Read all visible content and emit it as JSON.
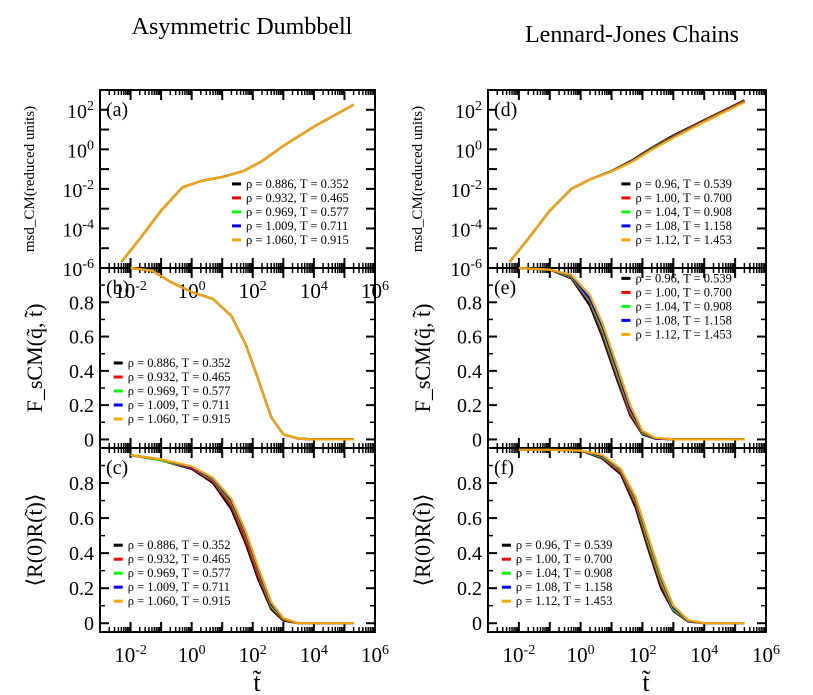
{
  "columns": [
    {
      "title": "Asymmetric Dumbbell"
    },
    {
      "title": "Lennard-Jones Chains"
    }
  ],
  "xlabel": "t̃",
  "colors": [
    "#000000",
    "#ff0000",
    "#00ff00",
    "#0000ff",
    "#ffa500"
  ],
  "chart_data": [
    {
      "panel": "(a)",
      "type": "line",
      "xscale": "log",
      "yscale": "log",
      "xlim": [
        0.001,
        1000000
      ],
      "ylim": [
        1e-06,
        1000
      ],
      "xticks": [
        "10^-2",
        "10^0",
        "10^2",
        "10^4",
        "10^6"
      ],
      "yticks": [
        "10^-6",
        "10^-4",
        "10^-2",
        "10^0",
        "10^2"
      ],
      "ylabel": "msd_CM(reduced units)",
      "legend": "lower-right",
      "series": [
        {
          "name": "ρ = 0.886, T = 0.352",
          "x": [
            0.005,
            0.02,
            0.1,
            0.5,
            2,
            10,
            50,
            200,
            1000,
            10000,
            200000
          ],
          "y": [
            2e-06,
            3e-05,
            0.0008,
            0.012,
            0.025,
            0.04,
            0.08,
            0.25,
            1.5,
            14,
            180
          ]
        },
        {
          "name": "ρ = 0.932, T = 0.465",
          "x": [
            0.005,
            0.02,
            0.1,
            0.5,
            2,
            10,
            50,
            200,
            1000,
            10000,
            200000
          ],
          "y": [
            2e-06,
            3e-05,
            0.0008,
            0.012,
            0.025,
            0.04,
            0.08,
            0.25,
            1.5,
            14,
            180
          ]
        },
        {
          "name": "ρ = 0.969, T = 0.577",
          "x": [
            0.005,
            0.02,
            0.1,
            0.5,
            2,
            10,
            50,
            200,
            1000,
            10000,
            200000
          ],
          "y": [
            2e-06,
            3e-05,
            0.0008,
            0.012,
            0.025,
            0.04,
            0.08,
            0.25,
            1.5,
            14,
            180
          ]
        },
        {
          "name": "ρ = 1.009, T = 0.711",
          "x": [
            0.005,
            0.02,
            0.1,
            0.5,
            2,
            10,
            50,
            200,
            1000,
            10000,
            200000
          ],
          "y": [
            2e-06,
            3e-05,
            0.0008,
            0.012,
            0.025,
            0.04,
            0.08,
            0.25,
            1.5,
            14,
            180
          ]
        },
        {
          "name": "ρ = 1.060, T = 0.915",
          "x": [
            0.005,
            0.02,
            0.1,
            0.5,
            2,
            10,
            50,
            200,
            1000,
            10000,
            200000
          ],
          "y": [
            2e-06,
            3e-05,
            0.0008,
            0.012,
            0.025,
            0.04,
            0.08,
            0.25,
            1.5,
            14,
            180
          ]
        }
      ]
    },
    {
      "panel": "(b)",
      "type": "line",
      "xscale": "log",
      "xlim": [
        0.001,
        1000000
      ],
      "ylim": [
        -0.05,
        1.0
      ],
      "yticks": [
        "0",
        "0.2",
        "0.4",
        "0.6",
        "0.8"
      ],
      "ylabel": "F_sCM(q̃, t̃)",
      "legend": "lower-left",
      "series": [
        {
          "name": "ρ = 0.886, T = 0.352",
          "x": [
            0.01,
            0.05,
            0.2,
            1,
            5,
            20,
            60,
            150,
            400,
            1000,
            3000,
            10000,
            200000
          ],
          "y": [
            1.0,
            0.985,
            0.92,
            0.86,
            0.82,
            0.72,
            0.55,
            0.35,
            0.13,
            0.03,
            0.005,
            0.0,
            0.0
          ]
        },
        {
          "name": "ρ = 0.932, T = 0.465",
          "x": [
            0.01,
            0.05,
            0.2,
            1,
            5,
            20,
            60,
            150,
            400,
            1000,
            3000,
            10000,
            200000
          ],
          "y": [
            1.0,
            0.985,
            0.92,
            0.86,
            0.82,
            0.72,
            0.55,
            0.35,
            0.13,
            0.03,
            0.005,
            0.0,
            0.0
          ]
        },
        {
          "name": "ρ = 0.969, T = 0.577",
          "x": [
            0.01,
            0.05,
            0.2,
            1,
            5,
            20,
            60,
            150,
            400,
            1000,
            3000,
            10000,
            200000
          ],
          "y": [
            1.0,
            0.985,
            0.92,
            0.86,
            0.82,
            0.72,
            0.55,
            0.35,
            0.13,
            0.03,
            0.005,
            0.0,
            0.0
          ]
        },
        {
          "name": "ρ = 1.009, T = 0.711",
          "x": [
            0.01,
            0.05,
            0.2,
            1,
            5,
            20,
            60,
            150,
            400,
            1000,
            3000,
            10000,
            200000
          ],
          "y": [
            1.0,
            0.985,
            0.92,
            0.86,
            0.82,
            0.72,
            0.55,
            0.35,
            0.13,
            0.03,
            0.005,
            0.0,
            0.0
          ]
        },
        {
          "name": "ρ = 1.060, T = 0.915",
          "x": [
            0.01,
            0.05,
            0.2,
            1,
            5,
            20,
            60,
            150,
            400,
            1000,
            3000,
            10000,
            200000
          ],
          "y": [
            1.0,
            0.985,
            0.92,
            0.86,
            0.82,
            0.72,
            0.55,
            0.35,
            0.13,
            0.03,
            0.005,
            0.0,
            0.0
          ]
        }
      ]
    },
    {
      "panel": "(c)",
      "type": "line",
      "xscale": "log",
      "xlim": [
        0.001,
        1000000
      ],
      "ylim": [
        -0.05,
        1.0
      ],
      "xticks": [
        "10^-2",
        "10^0",
        "10^2",
        "10^4",
        "10^6"
      ],
      "yticks": [
        "0",
        "0.2",
        "0.4",
        "0.6",
        "0.8"
      ],
      "ylabel": "⟨R(0)R(t̃)⟩",
      "legend": "lower-left",
      "series": [
        {
          "name": "ρ = 0.886, T = 0.352",
          "x": [
            0.01,
            0.1,
            1,
            5,
            20,
            60,
            150,
            400,
            1000,
            3000,
            10000,
            200000
          ],
          "y": [
            0.96,
            0.93,
            0.88,
            0.8,
            0.65,
            0.45,
            0.25,
            0.08,
            0.015,
            0.0,
            0.0,
            0.0
          ]
        },
        {
          "name": "ρ = 0.932, T = 0.465",
          "x": [
            0.01,
            0.1,
            1,
            5,
            20,
            60,
            150,
            400,
            1000,
            3000,
            10000,
            200000
          ],
          "y": [
            0.96,
            0.93,
            0.885,
            0.81,
            0.67,
            0.47,
            0.27,
            0.09,
            0.02,
            0.0,
            0.0,
            0.0
          ]
        },
        {
          "name": "ρ = 0.969, T = 0.577",
          "x": [
            0.01,
            0.1,
            1,
            5,
            20,
            60,
            150,
            400,
            1000,
            3000,
            10000,
            200000
          ],
          "y": [
            0.96,
            0.93,
            0.89,
            0.82,
            0.69,
            0.5,
            0.3,
            0.1,
            0.025,
            0.0,
            0.0,
            0.0
          ]
        },
        {
          "name": "ρ = 1.009, T = 0.711",
          "x": [
            0.01,
            0.1,
            1,
            5,
            20,
            60,
            150,
            400,
            1000,
            3000,
            10000,
            200000
          ],
          "y": [
            0.96,
            0.935,
            0.89,
            0.825,
            0.7,
            0.51,
            0.31,
            0.11,
            0.028,
            0.0,
            0.0,
            0.0
          ]
        },
        {
          "name": "ρ = 1.060, T = 0.915",
          "x": [
            0.01,
            0.1,
            1,
            5,
            20,
            60,
            150,
            400,
            1000,
            3000,
            10000,
            200000
          ],
          "y": [
            0.96,
            0.935,
            0.895,
            0.83,
            0.71,
            0.52,
            0.32,
            0.12,
            0.03,
            0.0,
            0.0,
            0.0
          ]
        }
      ]
    },
    {
      "panel": "(d)",
      "type": "line",
      "xscale": "log",
      "yscale": "log",
      "xlim": [
        0.001,
        1000000
      ],
      "ylim": [
        1e-06,
        1000
      ],
      "yticks": [
        "10^-6",
        "10^-4",
        "10^-2",
        "10^0",
        "10^2"
      ],
      "ylabel": "msd_CM(reduced units)",
      "legend": "lower-right",
      "series": [
        {
          "name": "ρ = 0.96, T = 0.539",
          "x": [
            0.005,
            0.02,
            0.1,
            0.5,
            2,
            10,
            50,
            200,
            1000,
            10000,
            200000
          ],
          "y": [
            2e-06,
            3e-05,
            0.0008,
            0.01,
            0.03,
            0.08,
            0.3,
            1.2,
            5,
            30,
            300
          ]
        },
        {
          "name": "ρ = 1.00, T = 0.700",
          "x": [
            0.005,
            0.02,
            0.1,
            0.5,
            2,
            10,
            50,
            200,
            1000,
            10000,
            200000
          ],
          "y": [
            2e-06,
            3e-05,
            0.0008,
            0.01,
            0.03,
            0.08,
            0.28,
            1.1,
            4.5,
            28,
            280
          ]
        },
        {
          "name": "ρ = 1.04, T = 0.908",
          "x": [
            0.005,
            0.02,
            0.1,
            0.5,
            2,
            10,
            50,
            200,
            1000,
            10000,
            200000
          ],
          "y": [
            2e-06,
            3e-05,
            0.0008,
            0.01,
            0.03,
            0.078,
            0.27,
            1.05,
            4.2,
            26,
            260
          ]
        },
        {
          "name": "ρ = 1.08, T = 1.158",
          "x": [
            0.005,
            0.02,
            0.1,
            0.5,
            2,
            10,
            50,
            200,
            1000,
            10000,
            200000
          ],
          "y": [
            2e-06,
            3e-05,
            0.0008,
            0.01,
            0.03,
            0.076,
            0.26,
            1.0,
            4,
            25,
            250
          ]
        },
        {
          "name": "ρ = 1.12, T = 1.453",
          "x": [
            0.005,
            0.02,
            0.1,
            0.5,
            2,
            10,
            50,
            200,
            1000,
            10000,
            200000
          ],
          "y": [
            2e-06,
            3e-05,
            0.0008,
            0.01,
            0.03,
            0.075,
            0.25,
            0.95,
            3.8,
            24,
            240
          ]
        }
      ]
    },
    {
      "panel": "(e)",
      "type": "line",
      "xscale": "log",
      "xlim": [
        0.001,
        1000000
      ],
      "ylim": [
        -0.05,
        1.0
      ],
      "yticks": [
        "0",
        "0.2",
        "0.4",
        "0.6",
        "0.8"
      ],
      "ylabel": "F_sCM(q̃, t̃)",
      "legend": "top-right",
      "series": [
        {
          "name": "ρ = 0.96, T = 0.539",
          "x": [
            0.01,
            0.1,
            0.5,
            2,
            5,
            15,
            40,
            100,
            250,
            1000,
            10000,
            200000
          ],
          "y": [
            1.0,
            0.99,
            0.94,
            0.78,
            0.6,
            0.35,
            0.14,
            0.03,
            0.005,
            0.0,
            0.0,
            0.0
          ]
        },
        {
          "name": "ρ = 1.00, T = 0.700",
          "x": [
            0.01,
            0.1,
            0.5,
            2,
            5,
            15,
            40,
            100,
            250,
            1000,
            10000,
            200000
          ],
          "y": [
            1.0,
            0.99,
            0.945,
            0.8,
            0.62,
            0.37,
            0.15,
            0.035,
            0.006,
            0.0,
            0.0,
            0.0
          ]
        },
        {
          "name": "ρ = 1.04, T = 0.908",
          "x": [
            0.01,
            0.1,
            0.5,
            2,
            5,
            15,
            40,
            100,
            250,
            1000,
            10000,
            200000
          ],
          "y": [
            1.0,
            0.99,
            0.95,
            0.81,
            0.64,
            0.39,
            0.17,
            0.04,
            0.007,
            0.0,
            0.0,
            0.0
          ]
        },
        {
          "name": "ρ = 1.08, T = 1.158",
          "x": [
            0.01,
            0.1,
            0.5,
            2,
            5,
            15,
            40,
            100,
            250,
            1000,
            10000,
            200000
          ],
          "y": [
            1.0,
            0.99,
            0.955,
            0.82,
            0.66,
            0.41,
            0.18,
            0.045,
            0.008,
            0.0,
            0.0,
            0.0
          ]
        },
        {
          "name": "ρ = 1.12, T = 1.453",
          "x": [
            0.01,
            0.1,
            0.5,
            2,
            5,
            15,
            40,
            100,
            250,
            1000,
            10000,
            200000
          ],
          "y": [
            1.0,
            0.99,
            0.96,
            0.84,
            0.68,
            0.43,
            0.2,
            0.05,
            0.01,
            0.0,
            0.0,
            0.0
          ]
        }
      ]
    },
    {
      "panel": "(f)",
      "type": "line",
      "xscale": "log",
      "xlim": [
        0.001,
        1000000
      ],
      "ylim": [
        -0.05,
        1.0
      ],
      "xticks": [
        "10^-2",
        "10^0",
        "10^2",
        "10^4",
        "10^6"
      ],
      "yticks": [
        "0",
        "0.2",
        "0.4",
        "0.6",
        "0.8"
      ],
      "ylabel": "⟨R(0)R(t̃)⟩",
      "legend": "lower-left",
      "series": [
        {
          "name": "ρ = 0.96, T = 0.539",
          "x": [
            0.01,
            0.1,
            1,
            5,
            20,
            60,
            150,
            400,
            1000,
            3000,
            10000,
            200000
          ],
          "y": [
            0.99,
            0.99,
            0.985,
            0.94,
            0.85,
            0.66,
            0.43,
            0.2,
            0.07,
            0.01,
            0.0,
            0.0
          ]
        },
        {
          "name": "ρ = 1.00, T = 0.700",
          "x": [
            0.01,
            0.1,
            1,
            5,
            20,
            60,
            150,
            400,
            1000,
            3000,
            10000,
            200000
          ],
          "y": [
            0.99,
            0.99,
            0.985,
            0.945,
            0.86,
            0.68,
            0.45,
            0.22,
            0.075,
            0.012,
            0.0,
            0.0
          ]
        },
        {
          "name": "ρ = 1.04, T = 0.908",
          "x": [
            0.01,
            0.1,
            1,
            5,
            20,
            60,
            150,
            400,
            1000,
            3000,
            10000,
            200000
          ],
          "y": [
            0.99,
            0.99,
            0.985,
            0.95,
            0.87,
            0.7,
            0.47,
            0.24,
            0.08,
            0.014,
            0.0,
            0.0
          ]
        },
        {
          "name": "ρ = 1.08, T = 1.158",
          "x": [
            0.01,
            0.1,
            1,
            5,
            20,
            60,
            150,
            400,
            1000,
            3000,
            10000,
            200000
          ],
          "y": [
            0.99,
            0.99,
            0.985,
            0.955,
            0.875,
            0.71,
            0.49,
            0.26,
            0.09,
            0.016,
            0.0,
            0.0
          ]
        },
        {
          "name": "ρ = 1.12, T = 1.453",
          "x": [
            0.01,
            0.1,
            1,
            5,
            20,
            60,
            150,
            400,
            1000,
            3000,
            10000,
            200000
          ],
          "y": [
            0.99,
            0.99,
            0.985,
            0.96,
            0.88,
            0.72,
            0.5,
            0.27,
            0.1,
            0.018,
            0.0,
            0.0
          ]
        }
      ]
    }
  ]
}
